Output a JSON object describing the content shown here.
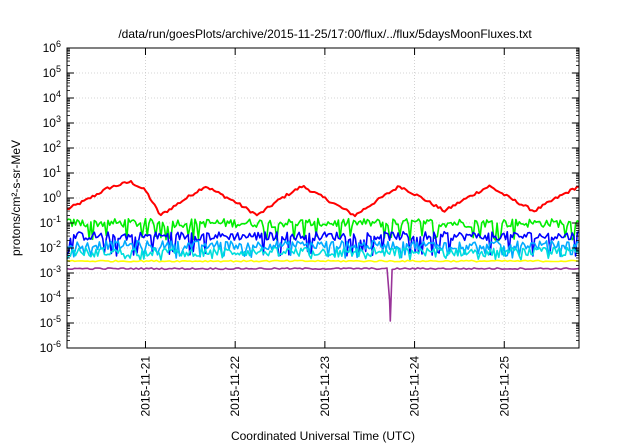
{
  "chart_data": {
    "type": "line",
    "title": "/data/run/goesPlots/archive/2015-11-25/17:00/flux/../flux/5daysMoonFluxes.txt",
    "xlabel": "Coordinated Universal Time (UTC)",
    "ylabel": "protons/cm²-s-sr-MeV",
    "yscale": "log",
    "ylim": [
      1e-06,
      1000000.0
    ],
    "xlim": [
      "2015-11-20T03:00",
      "2015-11-25T20:00"
    ],
    "x_ticks": [
      "2015-11-21",
      "2015-11-22",
      "2015-11-23",
      "2015-11-24",
      "2015-11-25"
    ],
    "y_ticks": [
      {
        "base": "10",
        "exp": "-6"
      },
      {
        "base": "10",
        "exp": "-5"
      },
      {
        "base": "10",
        "exp": "-4"
      },
      {
        "base": "10",
        "exp": "-3"
      },
      {
        "base": "10",
        "exp": "-2"
      },
      {
        "base": "10",
        "exp": "-1"
      },
      {
        "base": "10",
        "exp": "0"
      },
      {
        "base": "10",
        "exp": "1"
      },
      {
        "base": "10",
        "exp": "2"
      },
      {
        "base": "10",
        "exp": "3"
      },
      {
        "base": "10",
        "exp": "4"
      },
      {
        "base": "10",
        "exp": "5"
      },
      {
        "base": "10",
        "exp": "6"
      }
    ],
    "grid": true,
    "legend": "none",
    "series": [
      {
        "color": "#ff0000",
        "x": [
          "2015-11-20T03:00",
          "2015-11-20T08:00",
          "2015-11-20T14:00",
          "2015-11-20T20:00",
          "2015-11-21T00:00",
          "2015-11-21T04:00",
          "2015-11-21T10:00",
          "2015-11-21T16:00",
          "2015-11-22T00:00",
          "2015-11-22T06:00",
          "2015-11-22T12:00",
          "2015-11-22T18:00",
          "2015-11-23T01:00",
          "2015-11-23T08:00",
          "2015-11-23T14:00",
          "2015-11-23T20:00",
          "2015-11-24T02:00",
          "2015-11-24T08:00",
          "2015-11-24T14:00",
          "2015-11-24T20:00",
          "2015-11-25T02:00",
          "2015-11-25T08:00",
          "2015-11-25T14:00",
          "2015-11-25T20:00"
        ],
        "y": [
          0.35,
          0.8,
          2.5,
          4.5,
          2.0,
          0.2,
          0.8,
          3.0,
          0.7,
          0.2,
          0.9,
          3.0,
          0.8,
          0.2,
          0.8,
          3.0,
          1.0,
          0.3,
          1.0,
          3.0,
          0.9,
          0.3,
          1.0,
          3.0
        ]
      },
      {
        "color": "#00ee00",
        "x": [
          "2015-11-20T03:00",
          "2015-11-25T20:00"
        ],
        "y": [
          0.1,
          0.1
        ],
        "spiky": true,
        "spike_low": 0.025
      },
      {
        "color": "#0000ff",
        "x": [
          "2015-11-20T03:00",
          "2015-11-25T20:00"
        ],
        "y": [
          0.03,
          0.03
        ],
        "spiky": true,
        "spike_low": 0.006
      },
      {
        "color": "#00aaff",
        "x": [
          "2015-11-20T03:00",
          "2015-11-25T20:00"
        ],
        "y": [
          0.013,
          0.013
        ],
        "spiky": true,
        "spike_low": 0.005
      },
      {
        "color": "#00dddd",
        "x": [
          "2015-11-20T03:00",
          "2015-11-25T20:00"
        ],
        "y": [
          0.007,
          0.007
        ],
        "spiky": true,
        "spike_low": 0.004
      },
      {
        "color": "#ffff00",
        "x": [
          "2015-11-20T03:00",
          "2015-11-25T20:00"
        ],
        "y": [
          0.003,
          0.003
        ],
        "spiky": false
      },
      {
        "color": "#993399",
        "x": [
          "2015-11-20T03:00",
          "2015-11-23T17:00",
          "2015-11-23T17:30",
          "2015-11-23T18:00",
          "2015-11-25T20:00"
        ],
        "y": [
          0.0015,
          0.0015,
          1.2e-05,
          0.0015,
          0.0015
        ],
        "spiky": false
      }
    ]
  }
}
